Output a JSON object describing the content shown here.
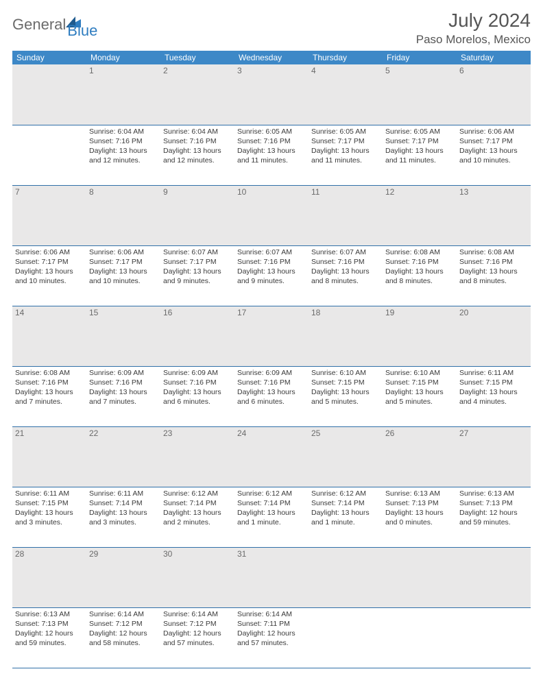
{
  "brand": {
    "general": "General",
    "blue": "Blue"
  },
  "title": "July 2024",
  "location": "Paso Morelos, Mexico",
  "colors": {
    "header_bg": "#3d88c7",
    "header_text": "#ffffff",
    "daynum_bg": "#e9e8e8",
    "daynum_text": "#6a6a6a",
    "cell_text": "#3a3a3a",
    "rule": "#2f6fa8",
    "brand_blue": "#2f7dc0",
    "brand_gray": "#6b6b6b"
  },
  "weekdays": [
    "Sunday",
    "Monday",
    "Tuesday",
    "Wednesday",
    "Thursday",
    "Friday",
    "Saturday"
  ],
  "weeks": [
    [
      {
        "n": "",
        "sunrise": "",
        "sunset": "",
        "daylight": ""
      },
      {
        "n": "1",
        "sunrise": "6:04 AM",
        "sunset": "7:16 PM",
        "daylight": "13 hours and 12 minutes."
      },
      {
        "n": "2",
        "sunrise": "6:04 AM",
        "sunset": "7:16 PM",
        "daylight": "13 hours and 12 minutes."
      },
      {
        "n": "3",
        "sunrise": "6:05 AM",
        "sunset": "7:16 PM",
        "daylight": "13 hours and 11 minutes."
      },
      {
        "n": "4",
        "sunrise": "6:05 AM",
        "sunset": "7:17 PM",
        "daylight": "13 hours and 11 minutes."
      },
      {
        "n": "5",
        "sunrise": "6:05 AM",
        "sunset": "7:17 PM",
        "daylight": "13 hours and 11 minutes."
      },
      {
        "n": "6",
        "sunrise": "6:06 AM",
        "sunset": "7:17 PM",
        "daylight": "13 hours and 10 minutes."
      }
    ],
    [
      {
        "n": "7",
        "sunrise": "6:06 AM",
        "sunset": "7:17 PM",
        "daylight": "13 hours and 10 minutes."
      },
      {
        "n": "8",
        "sunrise": "6:06 AM",
        "sunset": "7:17 PM",
        "daylight": "13 hours and 10 minutes."
      },
      {
        "n": "9",
        "sunrise": "6:07 AM",
        "sunset": "7:17 PM",
        "daylight": "13 hours and 9 minutes."
      },
      {
        "n": "10",
        "sunrise": "6:07 AM",
        "sunset": "7:16 PM",
        "daylight": "13 hours and 9 minutes."
      },
      {
        "n": "11",
        "sunrise": "6:07 AM",
        "sunset": "7:16 PM",
        "daylight": "13 hours and 8 minutes."
      },
      {
        "n": "12",
        "sunrise": "6:08 AM",
        "sunset": "7:16 PM",
        "daylight": "13 hours and 8 minutes."
      },
      {
        "n": "13",
        "sunrise": "6:08 AM",
        "sunset": "7:16 PM",
        "daylight": "13 hours and 8 minutes."
      }
    ],
    [
      {
        "n": "14",
        "sunrise": "6:08 AM",
        "sunset": "7:16 PM",
        "daylight": "13 hours and 7 minutes."
      },
      {
        "n": "15",
        "sunrise": "6:09 AM",
        "sunset": "7:16 PM",
        "daylight": "13 hours and 7 minutes."
      },
      {
        "n": "16",
        "sunrise": "6:09 AM",
        "sunset": "7:16 PM",
        "daylight": "13 hours and 6 minutes."
      },
      {
        "n": "17",
        "sunrise": "6:09 AM",
        "sunset": "7:16 PM",
        "daylight": "13 hours and 6 minutes."
      },
      {
        "n": "18",
        "sunrise": "6:10 AM",
        "sunset": "7:15 PM",
        "daylight": "13 hours and 5 minutes."
      },
      {
        "n": "19",
        "sunrise": "6:10 AM",
        "sunset": "7:15 PM",
        "daylight": "13 hours and 5 minutes."
      },
      {
        "n": "20",
        "sunrise": "6:11 AM",
        "sunset": "7:15 PM",
        "daylight": "13 hours and 4 minutes."
      }
    ],
    [
      {
        "n": "21",
        "sunrise": "6:11 AM",
        "sunset": "7:15 PM",
        "daylight": "13 hours and 3 minutes."
      },
      {
        "n": "22",
        "sunrise": "6:11 AM",
        "sunset": "7:14 PM",
        "daylight": "13 hours and 3 minutes."
      },
      {
        "n": "23",
        "sunrise": "6:12 AM",
        "sunset": "7:14 PM",
        "daylight": "13 hours and 2 minutes."
      },
      {
        "n": "24",
        "sunrise": "6:12 AM",
        "sunset": "7:14 PM",
        "daylight": "13 hours and 1 minute."
      },
      {
        "n": "25",
        "sunrise": "6:12 AM",
        "sunset": "7:14 PM",
        "daylight": "13 hours and 1 minute."
      },
      {
        "n": "26",
        "sunrise": "6:13 AM",
        "sunset": "7:13 PM",
        "daylight": "13 hours and 0 minutes."
      },
      {
        "n": "27",
        "sunrise": "6:13 AM",
        "sunset": "7:13 PM",
        "daylight": "12 hours and 59 minutes."
      }
    ],
    [
      {
        "n": "28",
        "sunrise": "6:13 AM",
        "sunset": "7:13 PM",
        "daylight": "12 hours and 59 minutes."
      },
      {
        "n": "29",
        "sunrise": "6:14 AM",
        "sunset": "7:12 PM",
        "daylight": "12 hours and 58 minutes."
      },
      {
        "n": "30",
        "sunrise": "6:14 AM",
        "sunset": "7:12 PM",
        "daylight": "12 hours and 57 minutes."
      },
      {
        "n": "31",
        "sunrise": "6:14 AM",
        "sunset": "7:11 PM",
        "daylight": "12 hours and 57 minutes."
      },
      {
        "n": "",
        "sunrise": "",
        "sunset": "",
        "daylight": ""
      },
      {
        "n": "",
        "sunrise": "",
        "sunset": "",
        "daylight": ""
      },
      {
        "n": "",
        "sunrise": "",
        "sunset": "",
        "daylight": ""
      }
    ]
  ],
  "labels": {
    "sunrise": "Sunrise:",
    "sunset": "Sunset:",
    "daylight": "Daylight:"
  }
}
